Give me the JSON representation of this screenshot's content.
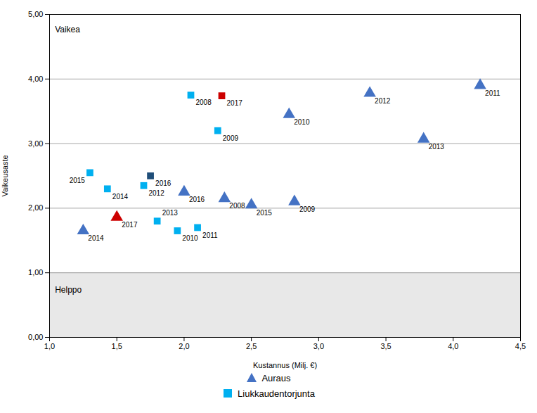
{
  "chart_data": {
    "type": "scatter",
    "xlabel": "Kustannus (Milj. €)",
    "ylabel": "Vaikeusaste",
    "xlim": [
      1.0,
      4.5
    ],
    "ylim": [
      0.0,
      5.0
    ],
    "xticks": [
      {
        "value": 1.0,
        "label": "1,0"
      },
      {
        "value": 1.5,
        "label": "1,5"
      },
      {
        "value": 2.0,
        "label": "2,0"
      },
      {
        "value": 2.5,
        "label": "2,5"
      },
      {
        "value": 3.0,
        "label": "3,0"
      },
      {
        "value": 3.5,
        "label": "3,5"
      },
      {
        "value": 4.0,
        "label": "4,0"
      },
      {
        "value": 4.5,
        "label": "4,5"
      }
    ],
    "yticks": [
      {
        "value": 0.0,
        "label": "0,00"
      },
      {
        "value": 1.0,
        "label": "1,00"
      },
      {
        "value": 2.0,
        "label": "2,00"
      },
      {
        "value": 3.0,
        "label": "3,00"
      },
      {
        "value": 4.0,
        "label": "4,00"
      },
      {
        "value": 5.0,
        "label": "5,00"
      }
    ],
    "grid": "y",
    "legend": "bottom",
    "bands": [
      {
        "y1": 0.0,
        "y2": 1.0,
        "color": "#E8E8E8"
      },
      {
        "y1": 1.0,
        "y2": 5.0,
        "color": "#FFFFFF"
      }
    ],
    "annotations": [
      {
        "text": "Vaikea",
        "x": 1.04,
        "y": 4.82
      },
      {
        "text": "Helppo",
        "x": 1.04,
        "y": 0.78
      }
    ],
    "series": [
      {
        "name": "Auraus",
        "marker": "triangle",
        "color": "#4472C4",
        "x": [
          1.25,
          1.5,
          2.0,
          2.3,
          2.5,
          2.82,
          2.78,
          3.38,
          3.78,
          4.2
        ],
        "values": [
          1.65,
          1.86,
          2.25,
          2.15,
          2.05,
          2.1,
          3.45,
          3.78,
          3.07,
          3.9
        ],
        "colors": [
          "#4472C4",
          "#CC0000",
          "#4472C4",
          "#4472C4",
          "#4472C4",
          "#4472C4",
          "#4472C4",
          "#4472C4",
          "#4472C4",
          "#4472C4"
        ],
        "labels": [
          "2014",
          "2017",
          "2016",
          "2008",
          "2015",
          "2009",
          "2010",
          "2012",
          "2013",
          "2011"
        ]
      },
      {
        "name": "Liukkaudentorjunta",
        "marker": "square",
        "color": "#00B0F0",
        "x": [
          1.3,
          1.43,
          1.7,
          1.75,
          1.8,
          1.95,
          2.1,
          2.05,
          2.28,
          2.25
        ],
        "values": [
          2.55,
          2.3,
          2.35,
          2.5,
          1.8,
          1.65,
          1.7,
          3.75,
          3.74,
          3.2
        ],
        "colors": [
          "#00B0F0",
          "#00B0F0",
          "#00B0F0",
          "#1F4E79",
          "#00B0F0",
          "#00B0F0",
          "#00B0F0",
          "#00B0F0",
          "#CC0000",
          "#00B0F0"
        ],
        "labels": [
          "2015",
          "2014",
          "2012",
          "2016",
          "2013",
          "2010",
          "2011",
          "2008",
          "2017",
          "2009"
        ]
      }
    ]
  }
}
